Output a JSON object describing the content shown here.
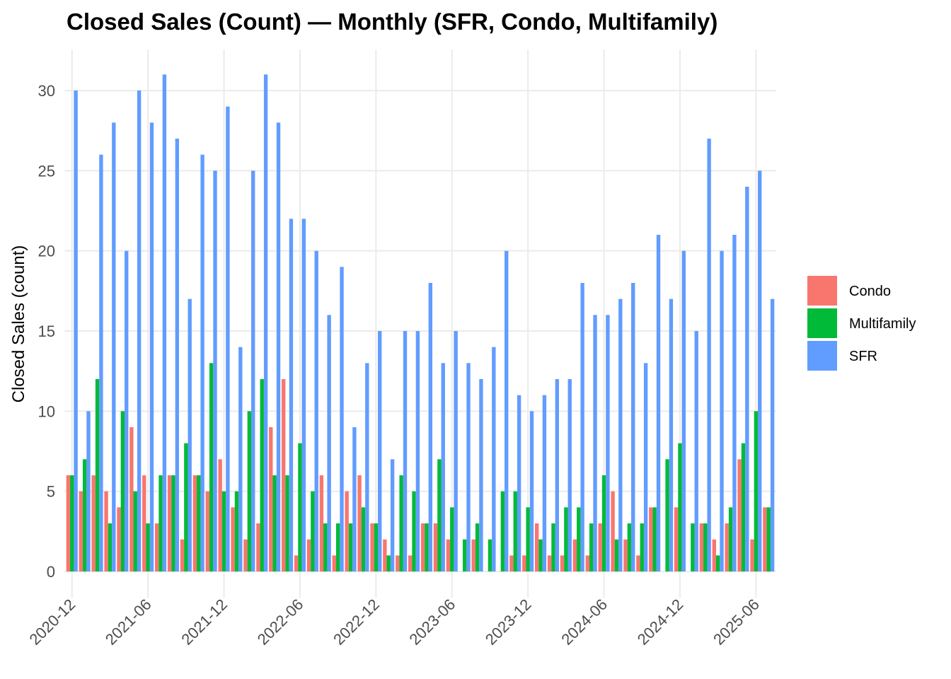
{
  "chart_data": {
    "type": "bar",
    "title": "Closed Sales (Count) — Monthly (SFR, Condo, Multifamily)",
    "xlabel": "",
    "ylabel": "Closed Sales (count)",
    "ylim": [
      0,
      32.5
    ],
    "yticks": [
      0,
      5,
      10,
      15,
      20,
      25,
      30
    ],
    "xticks": [
      "2020-12",
      "2021-06",
      "2021-12",
      "2022-06",
      "2022-12",
      "2023-06",
      "2023-12",
      "2024-06",
      "2024-12",
      "2025-06"
    ],
    "grid": true,
    "legend_position": "right",
    "categories": [
      "2020-12",
      "2021-01",
      "2021-02",
      "2021-03",
      "2021-04",
      "2021-05",
      "2021-06",
      "2021-07",
      "2021-08",
      "2021-09",
      "2021-10",
      "2021-11",
      "2021-12",
      "2022-01",
      "2022-02",
      "2022-03",
      "2022-04",
      "2022-05",
      "2022-06",
      "2022-07",
      "2022-08",
      "2022-09",
      "2022-10",
      "2022-11",
      "2022-12",
      "2023-01",
      "2023-02",
      "2023-03",
      "2023-04",
      "2023-05",
      "2023-06",
      "2023-07",
      "2023-08",
      "2023-09",
      "2023-10",
      "2023-11",
      "2023-12",
      "2024-01",
      "2024-02",
      "2024-03",
      "2024-04",
      "2024-05",
      "2024-06",
      "2024-07",
      "2024-08",
      "2024-09",
      "2024-10",
      "2024-11",
      "2024-12",
      "2025-01",
      "2025-02",
      "2025-03",
      "2025-04",
      "2025-05",
      "2025-06",
      "2025-07"
    ],
    "series": [
      {
        "name": "Condo",
        "color": "#F8766D",
        "values": [
          6,
          5,
          6,
          5,
          4,
          9,
          6,
          3,
          6,
          2,
          6,
          5,
          7,
          4,
          2,
          3,
          9,
          12,
          1,
          2,
          6,
          1,
          5,
          6,
          3,
          2,
          1,
          1,
          3,
          3,
          2,
          0,
          2,
          0,
          0,
          1,
          1,
          3,
          1,
          1,
          2,
          1,
          3,
          5,
          2,
          1,
          4,
          0,
          4,
          0,
          3,
          2,
          3,
          7,
          2,
          4
        ]
      },
      {
        "name": "Multifamily",
        "color": "#00BA38",
        "values": [
          6,
          7,
          12,
          3,
          10,
          5,
          3,
          6,
          6,
          8,
          6,
          13,
          5,
          5,
          10,
          12,
          6,
          6,
          8,
          5,
          3,
          3,
          3,
          4,
          3,
          1,
          6,
          5,
          3,
          7,
          4,
          2,
          3,
          2,
          5,
          5,
          4,
          2,
          3,
          4,
          4,
          3,
          6,
          2,
          3,
          3,
          4,
          7,
          8,
          3,
          3,
          1,
          4,
          8,
          10,
          4
        ]
      },
      {
        "name": "SFR",
        "color": "#619CFF",
        "values": [
          30,
          10,
          26,
          28,
          20,
          30,
          28,
          31,
          27,
          17,
          26,
          25,
          29,
          14,
          25,
          31,
          28,
          22,
          22,
          20,
          16,
          19,
          9,
          13,
          15,
          7,
          15,
          15,
          18,
          13,
          15,
          13,
          12,
          14,
          20,
          11,
          10,
          11,
          12,
          12,
          18,
          16,
          16,
          17,
          18,
          13,
          21,
          17,
          20,
          15,
          27,
          20,
          21,
          24,
          25,
          17
        ]
      }
    ]
  }
}
